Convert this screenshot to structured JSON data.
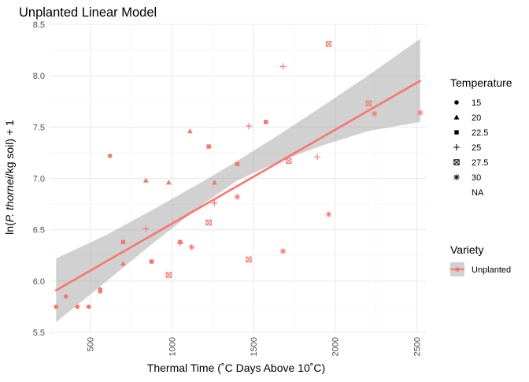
{
  "chart_data": {
    "type": "scatter",
    "title": "Unplanted Linear Model",
    "xlabel": "Thermal Time (˚C Days Above 10˚C)",
    "ylabel": {
      "prefix": "ln(",
      "italic": "P. thornei",
      "suffix": "/kg soil) + 1"
    },
    "xlim": [
      250,
      2560
    ],
    "ylim": [
      5.5,
      8.5
    ],
    "x_ticks": [
      500,
      1000,
      1500,
      2000,
      2500
    ],
    "y_ticks": [
      5.5,
      6.0,
      6.5,
      7.0,
      7.5,
      8.0,
      8.5
    ],
    "grid": true,
    "point_color": "#F8766D",
    "line_color": "#F8766D",
    "band_color": "#999999",
    "fit_line": {
      "x": [
        290,
        2520
      ],
      "y": [
        5.91,
        7.95
      ]
    },
    "confidence_band": {
      "x": [
        290,
        600,
        900,
        1200,
        1400,
        1650,
        1900,
        2200,
        2520
      ],
      "lower": [
        5.6,
        6.0,
        6.39,
        6.76,
        6.98,
        7.16,
        7.31,
        7.46,
        7.55
      ],
      "upper": [
        6.22,
        6.45,
        6.71,
        6.98,
        7.17,
        7.42,
        7.68,
        8.0,
        8.36
      ]
    },
    "legend": {
      "shape_title": "Temperature",
      "shape_entries": [
        {
          "label": "15",
          "shape": "circle"
        },
        {
          "label": "20",
          "shape": "triangle"
        },
        {
          "label": "22.5",
          "shape": "square"
        },
        {
          "label": "25",
          "shape": "plus"
        },
        {
          "label": "27.5",
          "shape": "boxx"
        },
        {
          "label": "30",
          "shape": "asterisk"
        },
        {
          "label": "NA",
          "shape": "none"
        }
      ],
      "variety_title": "Variety",
      "variety_entries": [
        {
          "label": "Unplanted"
        }
      ],
      "placement": "right"
    },
    "series": [
      {
        "temperature": "15",
        "shape": "circle",
        "points": [
          [
            290,
            5.75
          ],
          [
            350,
            5.85
          ],
          [
            420,
            5.75
          ],
          [
            490,
            5.75
          ],
          [
            560,
            5.9
          ],
          [
            560,
            5.92
          ],
          [
            620,
            7.22
          ]
        ]
      },
      {
        "temperature": "20",
        "shape": "triangle",
        "points": [
          [
            700,
            6.17
          ],
          [
            840,
            6.98
          ],
          [
            980,
            6.96
          ],
          [
            1110,
            7.46
          ],
          [
            1260,
            6.96
          ]
        ]
      },
      {
        "temperature": "22.5",
        "shape": "square",
        "points": [
          [
            700,
            6.38
          ],
          [
            875,
            6.19
          ],
          [
            1050,
            6.38
          ],
          [
            1225,
            7.31
          ],
          [
            1400,
            7.14
          ],
          [
            1575,
            7.55
          ]
        ]
      },
      {
        "temperature": "25",
        "shape": "plus",
        "points": [
          [
            840,
            6.51
          ],
          [
            1050,
            6.37
          ],
          [
            1260,
            6.76
          ],
          [
            1470,
            7.51
          ],
          [
            1680,
            8.09
          ],
          [
            1890,
            7.21
          ]
        ]
      },
      {
        "temperature": "27.5",
        "shape": "boxx",
        "points": [
          [
            980,
            6.06
          ],
          [
            1225,
            6.57
          ],
          [
            1470,
            6.21
          ],
          [
            1715,
            7.17
          ],
          [
            1960,
            8.31
          ],
          [
            2205,
            7.73
          ]
        ]
      },
      {
        "temperature": "30",
        "shape": "asterisk",
        "points": [
          [
            1120,
            6.33
          ],
          [
            1400,
            6.82
          ],
          [
            1680,
            6.29
          ],
          [
            1960,
            6.65
          ],
          [
            2240,
            7.63
          ],
          [
            2520,
            7.64
          ]
        ]
      }
    ]
  }
}
